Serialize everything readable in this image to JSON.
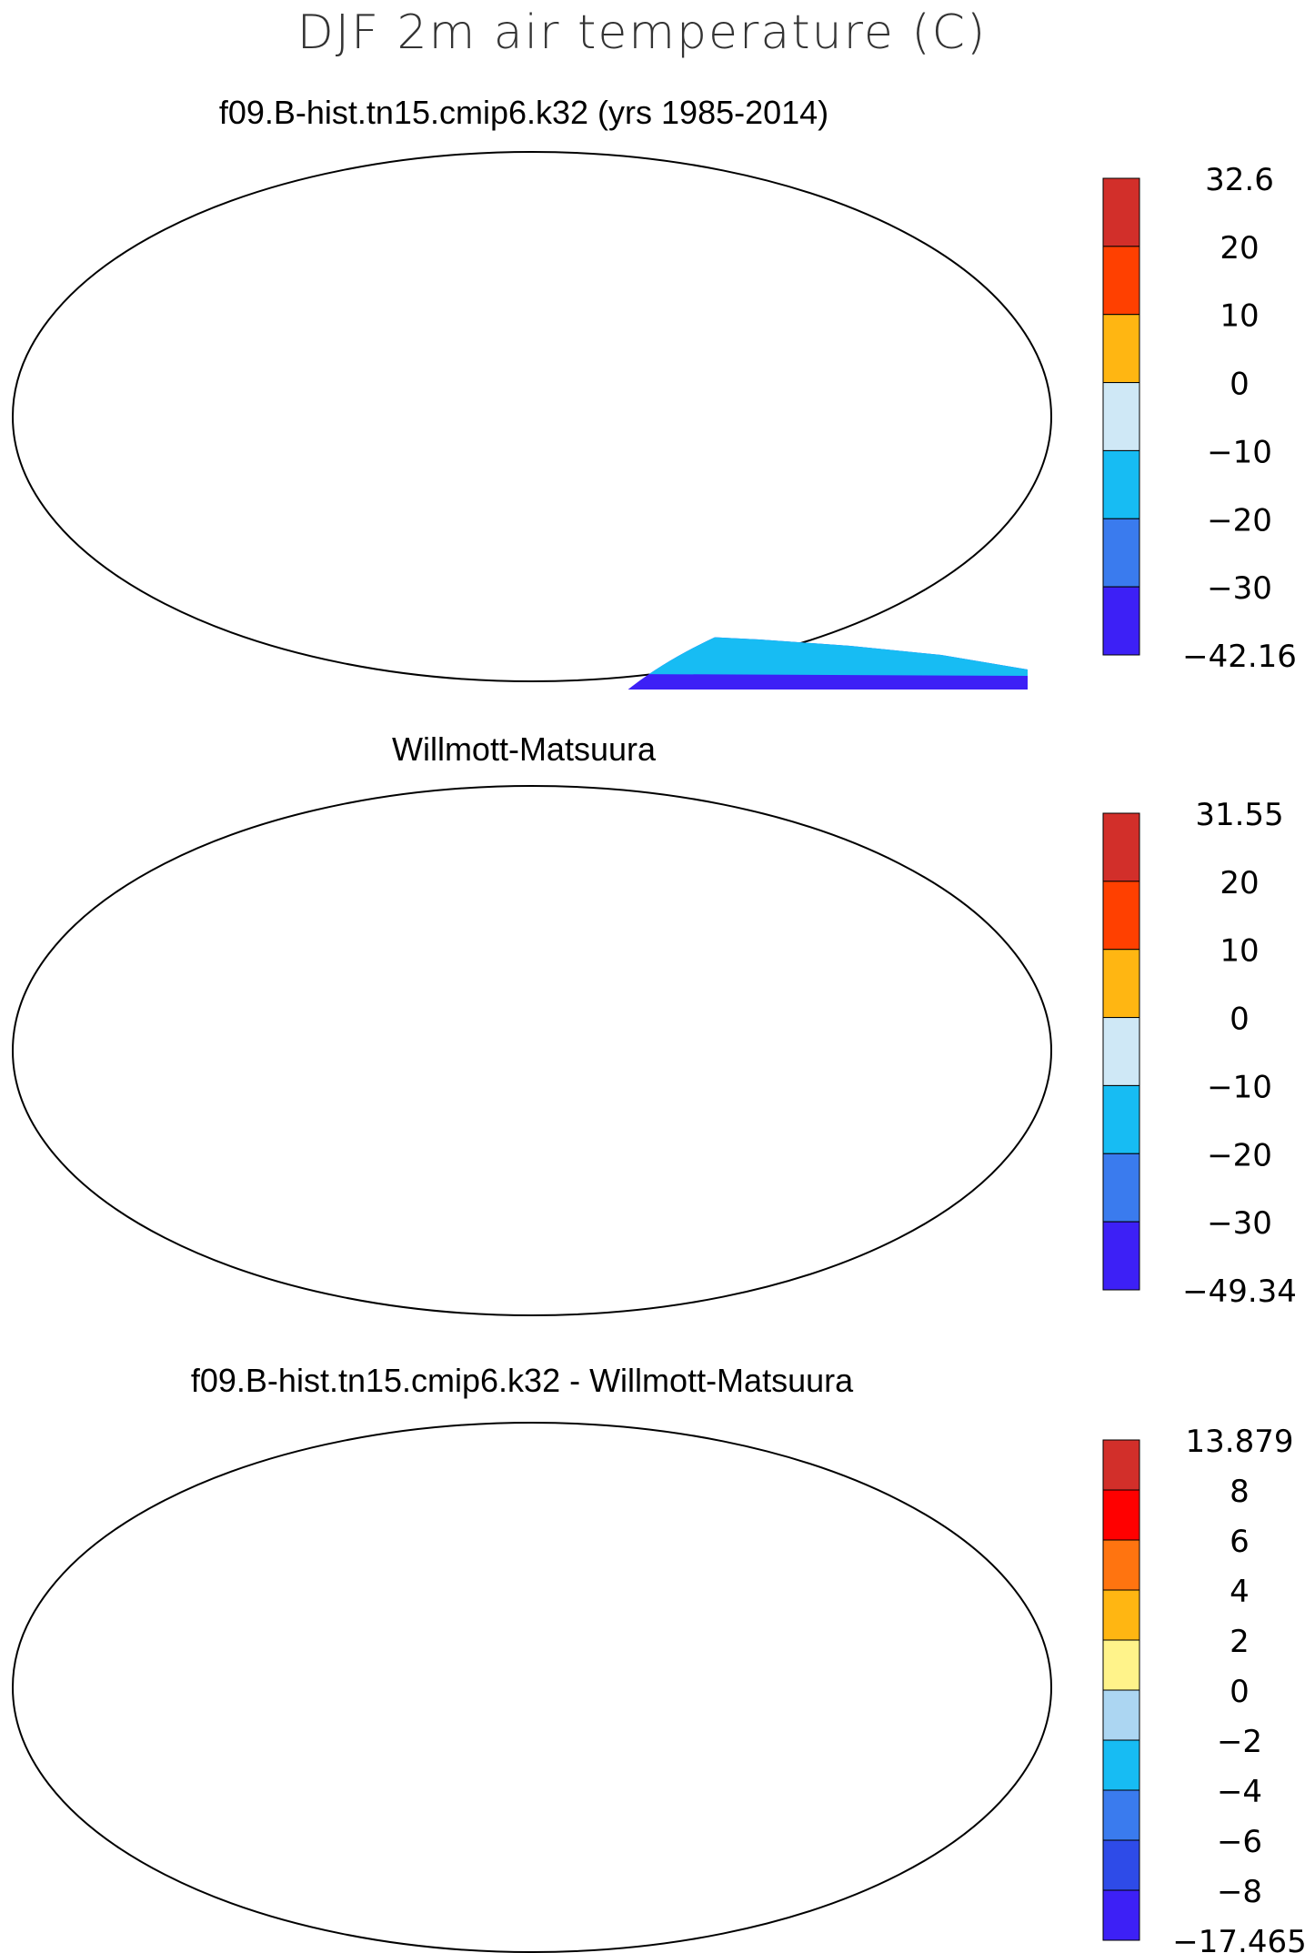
{
  "figure_title": "DJF 2m air temperature (C)",
  "panels": [
    {
      "id": "model",
      "title": "f09.B-hist.tn15.cmip6.k32 (yrs 1985-2014)",
      "colorbar": {
        "labels": [
          "32.6",
          "20",
          "10",
          "0",
          "−10",
          "−20",
          "−30",
          "−42.16"
        ],
        "colors": [
          "#d22f2a",
          "#ff4000",
          "#ffb612",
          "#cfe8f6",
          "#17bcf3",
          "#3a7bee",
          "#3d20f6"
        ]
      }
    },
    {
      "id": "obs",
      "title": "Willmott-Matsuura",
      "colorbar": {
        "labels": [
          "31.55",
          "20",
          "10",
          "0",
          "−10",
          "−20",
          "−30",
          "−49.34"
        ],
        "colors": [
          "#d22f2a",
          "#ff4000",
          "#ffb612",
          "#cfe8f6",
          "#17bcf3",
          "#3a7bee",
          "#3d20f6"
        ]
      }
    },
    {
      "id": "diff",
      "title": "f09.B-hist.tn15.cmip6.k32 - Willmott-Matsuura",
      "colorbar": {
        "labels": [
          "13.879",
          "8",
          "6",
          "4",
          "2",
          "0",
          "−2",
          "−4",
          "−6",
          "−8",
          "−17.465"
        ],
        "colors": [
          "#d22f2a",
          "#ff0000",
          "#ff7410",
          "#ffb612",
          "#fff38a",
          "#acd6f2",
          "#17bcf3",
          "#3a7bee",
          "#2e4be8",
          "#3d20f6"
        ]
      }
    }
  ],
  "colors": {
    "land_warm": "#d22f2a",
    "land_outline": "#000000",
    "ocean": "#ffffff"
  }
}
